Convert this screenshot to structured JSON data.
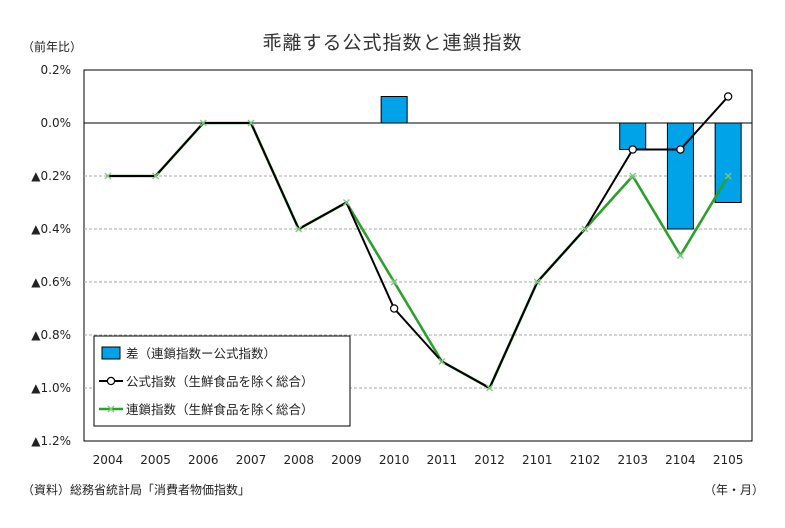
{
  "chart_data": {
    "type": "bar+line",
    "title": "乖離する公式指数と連鎖指数",
    "ylabel": "（前年比）",
    "xunit": "（年・月）",
    "source": "（資料）総務省統計局「消費者物価指数」",
    "categories": [
      "2004",
      "2005",
      "2006",
      "2007",
      "2008",
      "2009",
      "2010",
      "2011",
      "2012",
      "2101",
      "2102",
      "2103",
      "2104",
      "2105"
    ],
    "ylim": [
      -1.2,
      0.2
    ],
    "yticks": [
      0.2,
      0.0,
      -0.2,
      -0.4,
      -0.6,
      -0.8,
      -1.0,
      -1.2
    ],
    "ytick_labels": [
      "0.2%",
      "0.0%",
      "▲0.2%",
      "▲0.4%",
      "▲0.6%",
      "▲0.8%",
      "▲1.0%",
      "▲1.2%"
    ],
    "grid": true,
    "legend_position": "bottom-left",
    "series": [
      {
        "name": "差（連鎖指数ー公式指数）",
        "kind": "bar",
        "color": "#00a2e8",
        "values": [
          null,
          null,
          null,
          null,
          null,
          null,
          0.1,
          null,
          null,
          null,
          null,
          -0.1,
          -0.4,
          -0.3
        ]
      },
      {
        "name": "公式指数（生鮮食品を除く総合）",
        "kind": "line",
        "marker": "circle",
        "color": "#000000",
        "values": [
          -0.2,
          -0.2,
          0.0,
          0.0,
          -0.4,
          -0.3,
          -0.7,
          -0.9,
          -1.0,
          -0.6,
          -0.4,
          -0.1,
          -0.1,
          0.1
        ]
      },
      {
        "name": "連鎖指数（生鮮食品を除く総合）",
        "kind": "line",
        "marker": "x",
        "color": "#2ca02c",
        "values": [
          -0.2,
          -0.2,
          0.0,
          0.0,
          -0.4,
          -0.3,
          -0.6,
          -0.9,
          -1.0,
          -0.6,
          -0.4,
          -0.2,
          -0.5,
          -0.2
        ]
      }
    ]
  }
}
